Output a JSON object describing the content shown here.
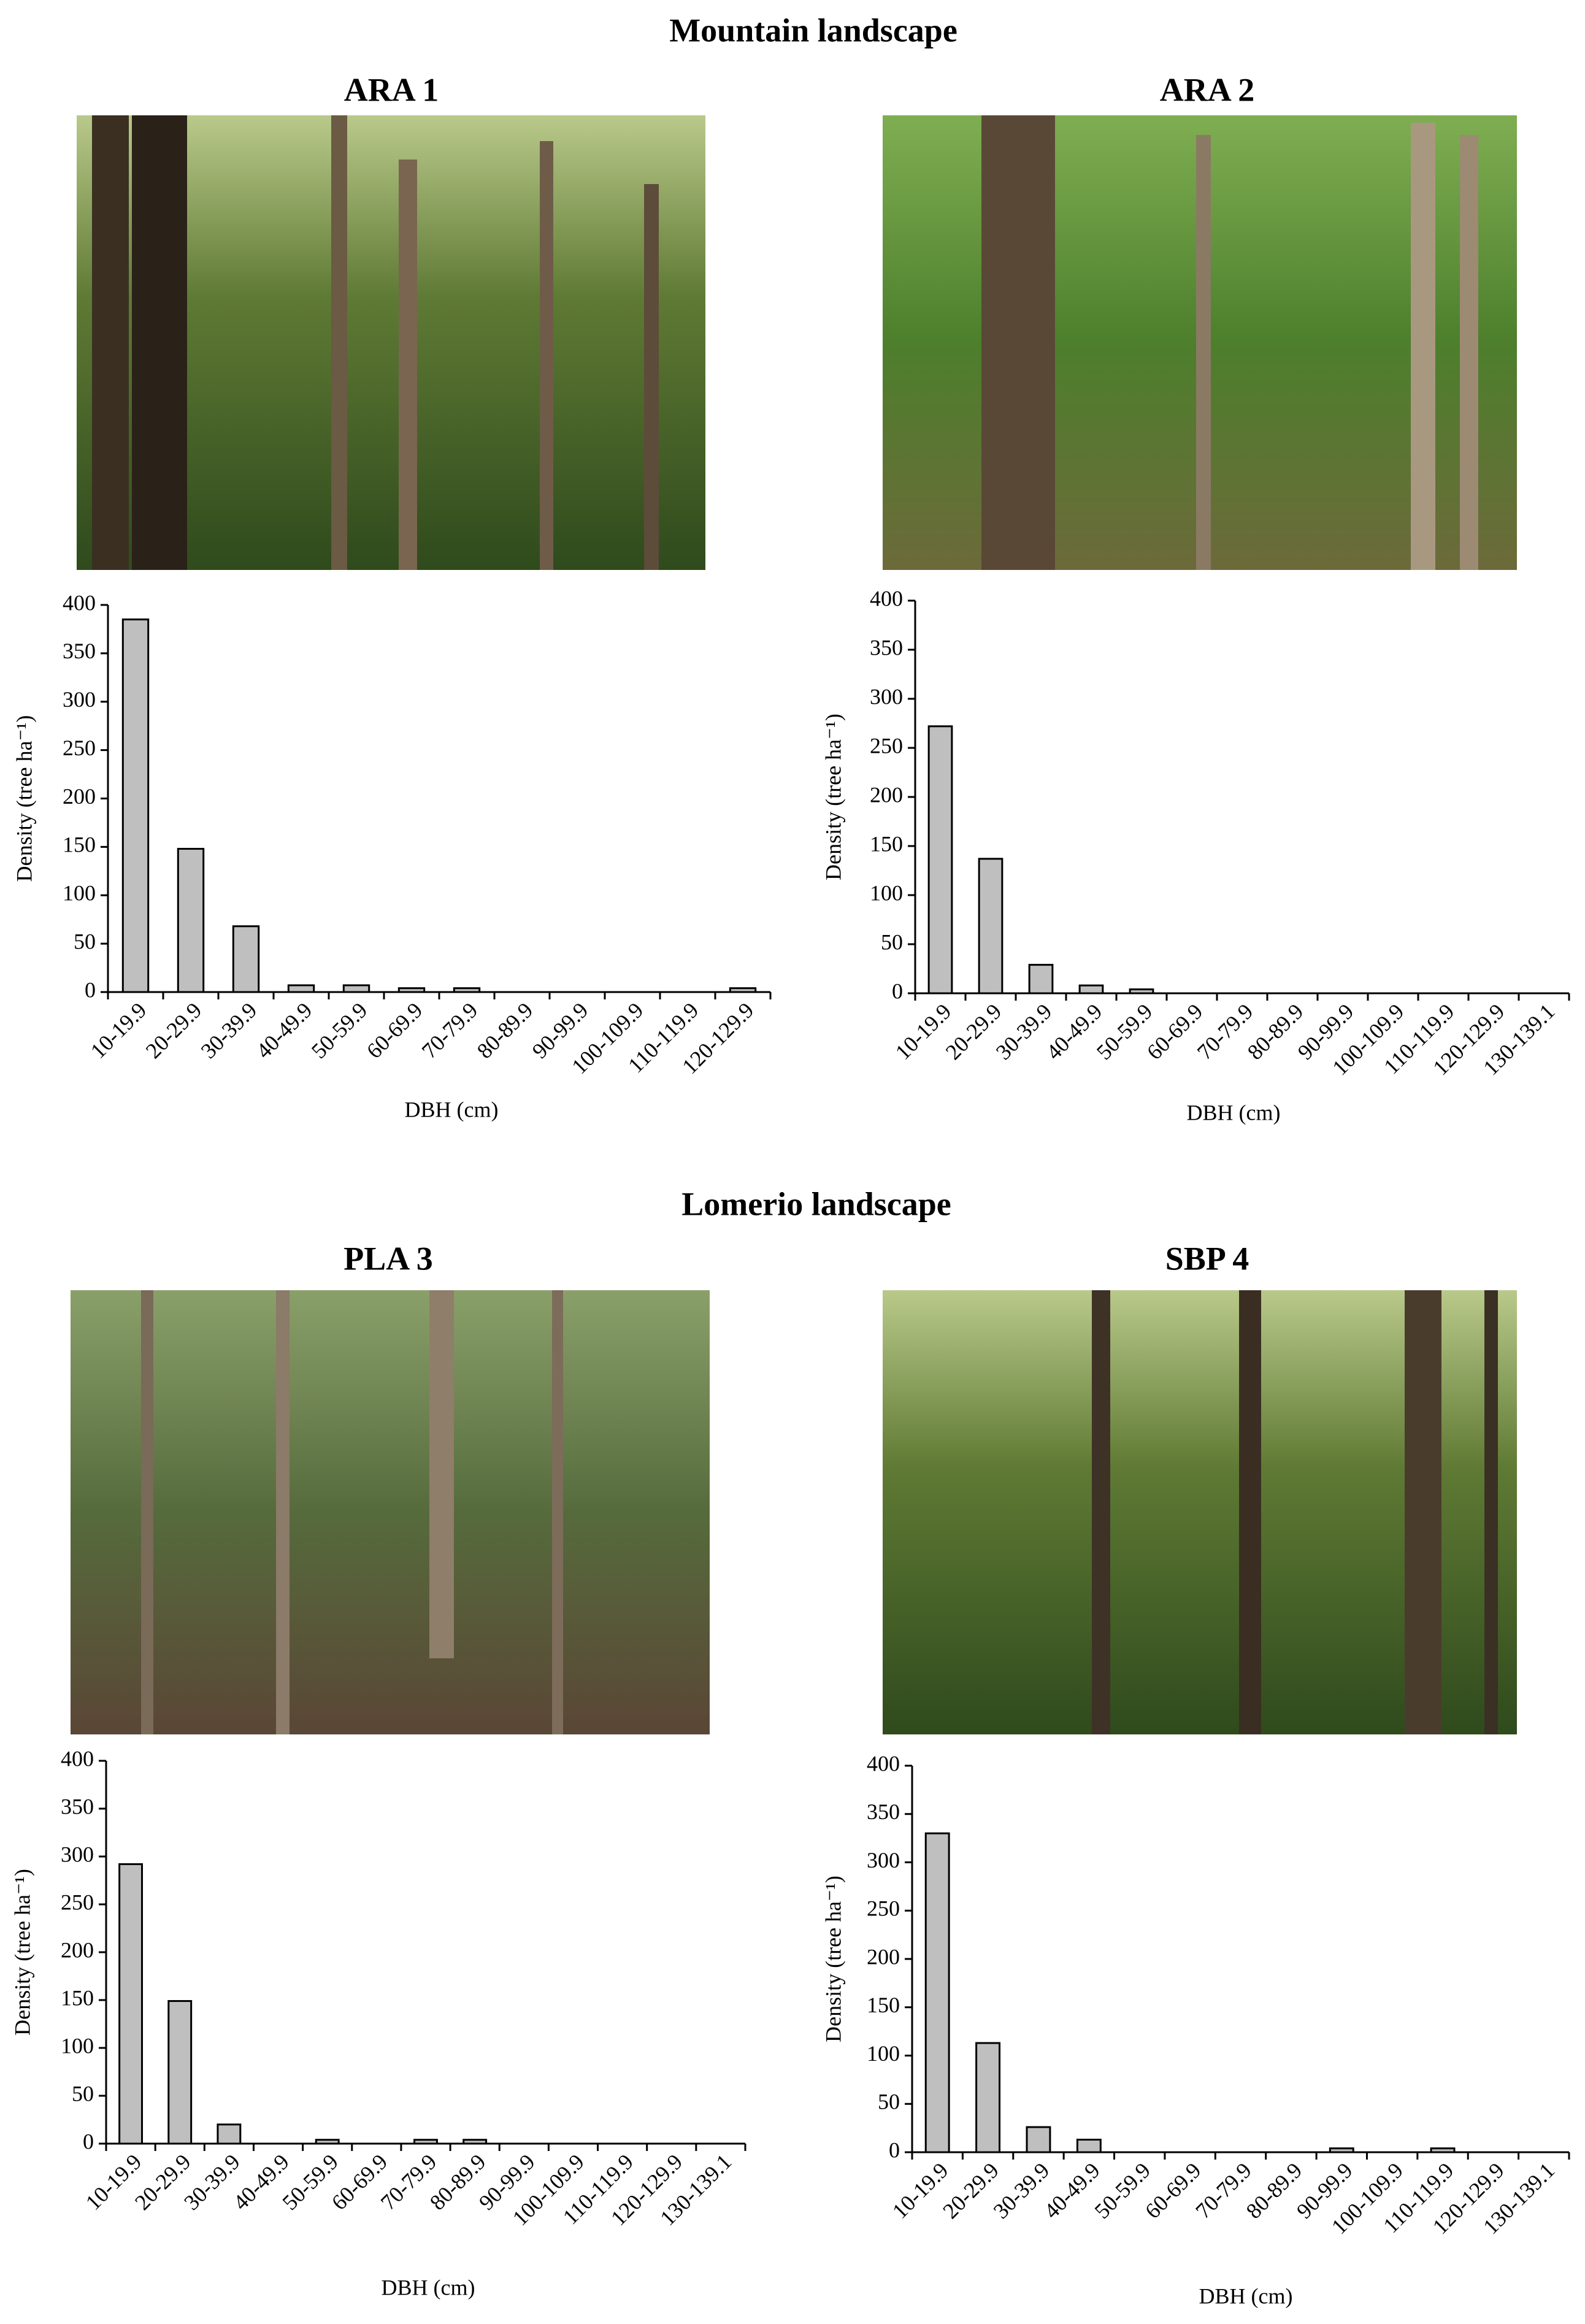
{
  "sections": [
    "Mountain landscape",
    "Lomerio landscape"
  ],
  "chart_data": [
    {
      "type": "bar",
      "title": "ARA 1",
      "ylabel": "Density (tree ha⁻¹)",
      "xlabel": "DBH (cm)",
      "categories": [
        "10-19.9",
        "20-29.9",
        "30-39.9",
        "40-49.9",
        "50-59.9",
        "60-69.9",
        "70-79.9",
        "80-89.9",
        "90-99.9",
        "100-109.9",
        "110-119.9",
        "120-129.9"
      ],
      "values": [
        385,
        148,
        68,
        7,
        7,
        4,
        4,
        0,
        0,
        0,
        0,
        4
      ],
      "color": "#bfbfbf",
      "ylim": [
        0,
        400
      ],
      "yticks": [
        0,
        50,
        100,
        150,
        200,
        250,
        300,
        350,
        400
      ]
    },
    {
      "type": "bar",
      "title": "ARA 2",
      "ylabel": "Density (tree ha⁻¹)",
      "xlabel": "DBH (cm)",
      "categories": [
        "10-19.9",
        "20-29.9",
        "30-39.9",
        "40-49.9",
        "50-59.9",
        "60-69.9",
        "70-79.9",
        "80-89.9",
        "90-99.9",
        "100-109.9",
        "110-119.9",
        "120-129.9",
        "130-139.1"
      ],
      "values": [
        272,
        137,
        29,
        8,
        4,
        0,
        0,
        0,
        0,
        0,
        0,
        0,
        0
      ],
      "color": "#bfbfbf",
      "ylim": [
        0,
        400
      ],
      "yticks": [
        0,
        50,
        100,
        150,
        200,
        250,
        300,
        350,
        400
      ]
    },
    {
      "type": "bar",
      "title": "PLA 3",
      "ylabel": "Density (tree ha⁻¹)",
      "xlabel": "DBH (cm)",
      "categories": [
        "10-19.9",
        "20-29.9",
        "30-39.9",
        "40-49.9",
        "50-59.9",
        "60-69.9",
        "70-79.9",
        "80-89.9",
        "90-99.9",
        "100-109.9",
        "110-119.9",
        "120-129.9",
        "130-139.1"
      ],
      "values": [
        292,
        149,
        20,
        0,
        4,
        0,
        4,
        4,
        0,
        0,
        0,
        0,
        0
      ],
      "color": "#bfbfbf",
      "ylim": [
        0,
        400
      ],
      "yticks": [
        0,
        50,
        100,
        150,
        200,
        250,
        300,
        350,
        400
      ]
    },
    {
      "type": "bar",
      "title": "SBP 4",
      "ylabel": "Density (tree ha⁻¹)",
      "xlabel": "DBH (cm)",
      "categories": [
        "10-19.9",
        "20-29.9",
        "30-39.9",
        "40-49.9",
        "50-59.9",
        "60-69.9",
        "70-79.9",
        "80-89.9",
        "90-99.9",
        "100-109.9",
        "110-119.9",
        "120-129.9",
        "130-139.1"
      ],
      "values": [
        330,
        113,
        26,
        13,
        0,
        0,
        0,
        0,
        4,
        0,
        4,
        0,
        0
      ],
      "color": "#bfbfbf",
      "ylim": [
        0,
        400
      ],
      "yticks": [
        0,
        50,
        100,
        150,
        200,
        250,
        300,
        350,
        400
      ]
    }
  ]
}
